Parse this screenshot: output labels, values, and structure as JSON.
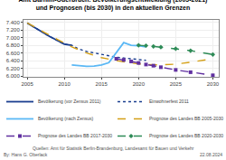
{
  "chart_data": {
    "type": "line",
    "title": "Amt Barnim-Oderbruch: Bevölkerungsentwicklung (2005-2021)\nund Prognosen (bis 2030) in den aktuellen Grenzen",
    "xlim": [
      2004.5,
      2030.8
    ],
    "ylim": [
      5980,
      7460
    ],
    "xticks": [
      2005,
      2010,
      2015,
      2020,
      2025,
      2030
    ],
    "yticks": [
      {
        "value": 6000,
        "label": "6.000"
      },
      {
        "value": 6200,
        "label": "6.200"
      },
      {
        "value": 6400,
        "label": "6.400"
      },
      {
        "value": 6600,
        "label": "6.600"
      },
      {
        "value": 6800,
        "label": "6.800"
      },
      {
        "value": 7000,
        "label": "7.000"
      },
      {
        "value": 7200,
        "label": "7.200"
      },
      {
        "value": 7400,
        "label": "7.400"
      }
    ],
    "grid": true,
    "legend": "bottom",
    "annotations": [
      "By: Hans G. Oberlack",
      "Quellen: Amt für Statistik Berlin-Brandenburg, Landesamt für Bauen und Verkehr",
      "22.08.2024"
    ],
    "series": [
      {
        "name": "Bevölkerung (vor Zensus 2011)",
        "color": "#1A3E8F",
        "line_style": "solid",
        "x": [
          2005,
          2006,
          2007,
          2008,
          2009,
          2010,
          2011
        ],
        "values": [
          7380,
          7260,
          7140,
          7030,
          6930,
          6830,
          6800
        ]
      },
      {
        "name": "Einwohnerfest 2011",
        "color": "#1A3E8F",
        "line_style": "dotted",
        "x": [
          2005,
          2006,
          2007,
          2008,
          2009,
          2010,
          2011,
          2012,
          2013,
          2014,
          2015,
          2016,
          2017,
          2018,
          2019,
          2020,
          2021
        ],
        "values": [
          7380,
          7260,
          7140,
          7030,
          6930,
          6830,
          6800,
          6700,
          6640,
          6600,
          6560,
          6520,
          6490,
          6470,
          6450,
          6430,
          6410
        ]
      },
      {
        "name": "Bevölkerung (nach Zensus)",
        "color": "#5BB8F5",
        "line_style": "solid",
        "x": [
          2011,
          2012,
          2013,
          2014,
          2015,
          2016,
          2017,
          2018,
          2019,
          2020,
          2021
        ],
        "values": [
          6290,
          6270,
          6255,
          6260,
          6290,
          6350,
          6620,
          6870,
          6800,
          6790,
          6760
        ]
      },
      {
        "name": "Prognose des Landes BB 2005-2030",
        "color": "#D4A017",
        "line_style": "dashed",
        "x": [
          2005,
          2007,
          2009,
          2011,
          2013,
          2015,
          2017,
          2019,
          2021,
          2023,
          2025,
          2027,
          2030
        ],
        "values": [
          7380,
          7160,
          6960,
          6760,
          6600,
          6480,
          6400,
          6340,
          6300,
          6290,
          6310,
          6360,
          6450
        ]
      },
      {
        "name": "Prognose des Landes BB 2017-2030",
        "color": "#6030A0",
        "line_style": "dashed",
        "marker": "square",
        "x": [
          2017,
          2018,
          2019,
          2020,
          2021,
          2022,
          2023,
          2025,
          2027,
          2030
        ],
        "values": [
          6450,
          6420,
          6380,
          6340,
          6300,
          6270,
          6230,
          6160,
          6100,
          6020
        ]
      },
      {
        "name": "Prognose des Landes BB 2020-2030",
        "color": "#2E8B57",
        "line_style": "dashed",
        "marker": "diamond",
        "x": [
          2020,
          2021,
          2022,
          2023,
          2025,
          2027,
          2030
        ],
        "values": [
          6800,
          6790,
          6770,
          6750,
          6710,
          6660,
          6560
        ]
      }
    ]
  }
}
